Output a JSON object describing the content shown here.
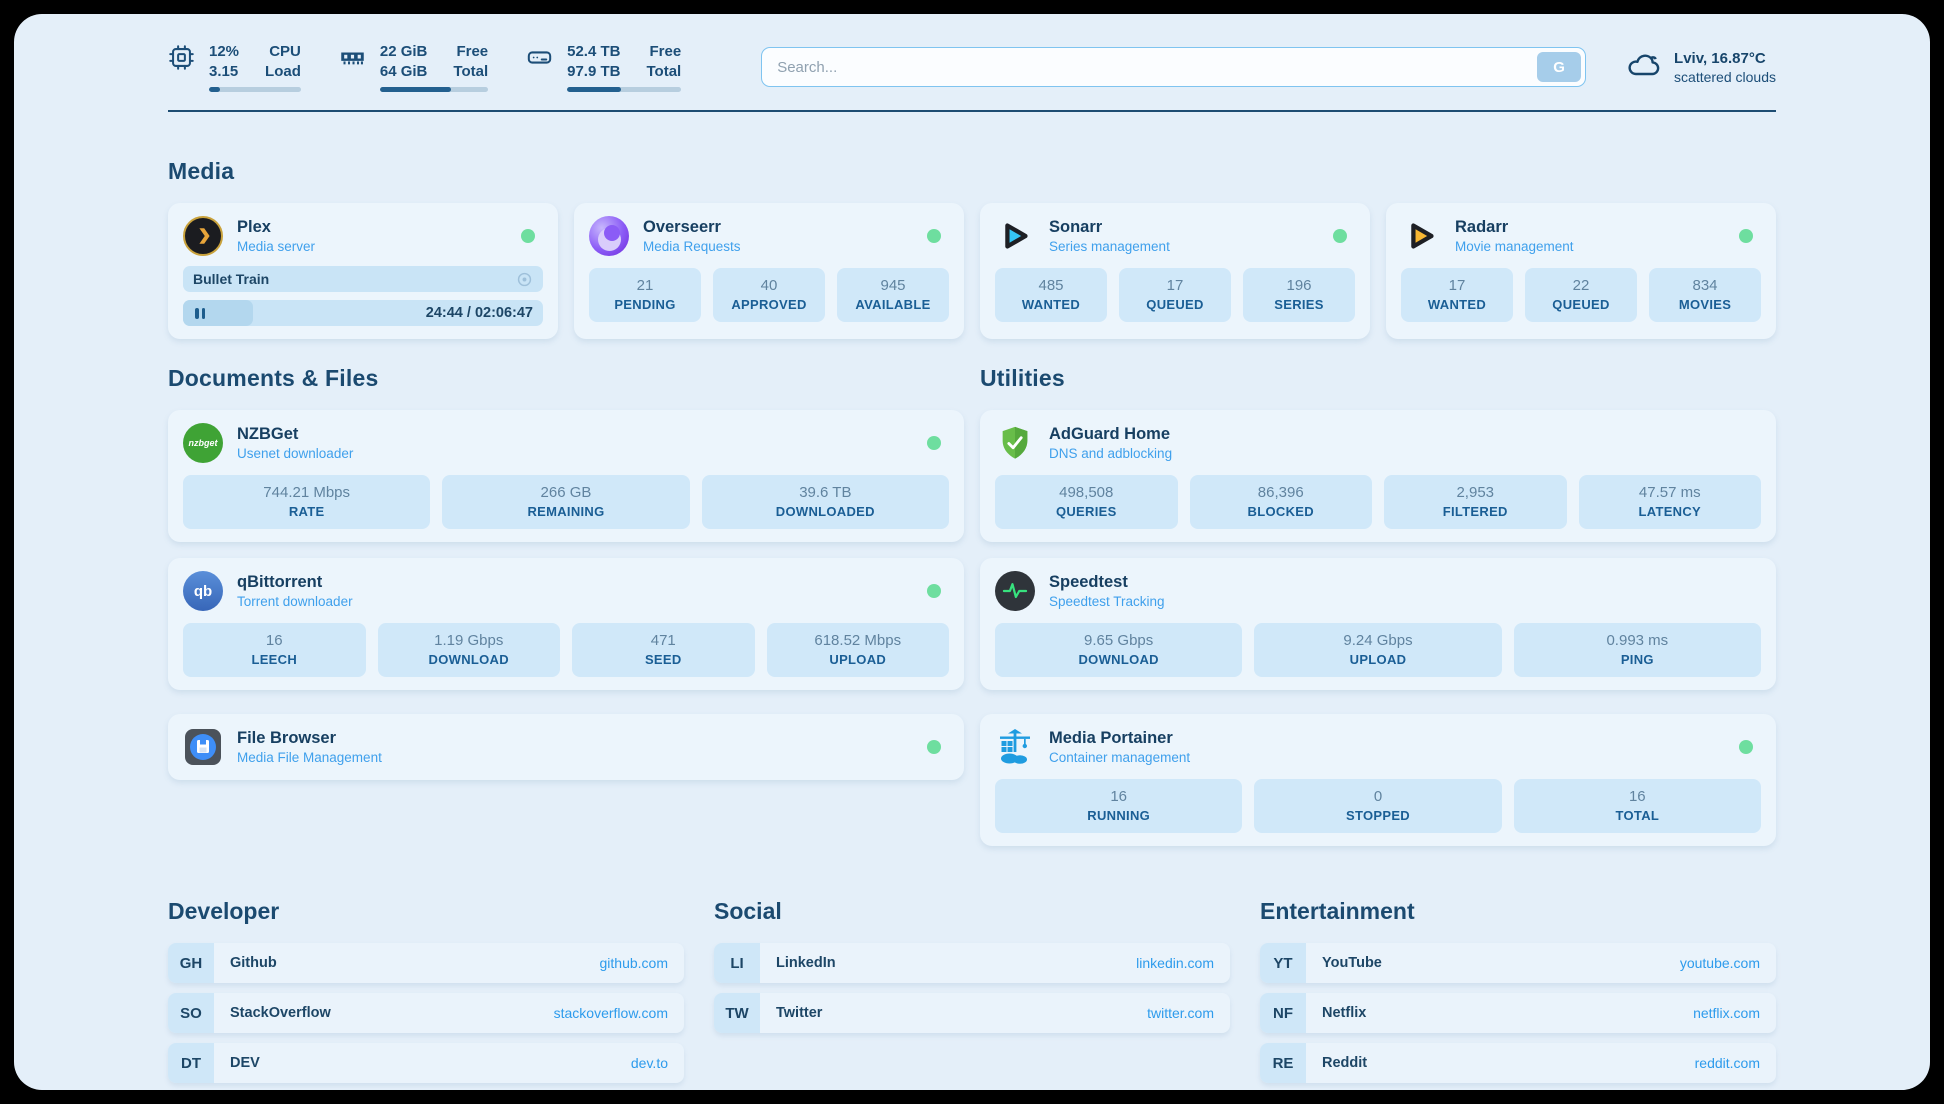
{
  "topbar": {
    "system": [
      {
        "icon": "cpu-icon",
        "line1": "12%",
        "line2": "3.15",
        "label1": "CPU",
        "label2": "Load",
        "progress": 12
      },
      {
        "icon": "ram-icon",
        "line1": "22 GiB",
        "line2": "64 GiB",
        "label1": "Free",
        "label2": "Total",
        "progress": 66
      },
      {
        "icon": "disk-icon",
        "line1": "52.4 TB",
        "line2": "97.9 TB",
        "label1": "Free",
        "label2": "Total",
        "progress": 47
      }
    ],
    "search": {
      "placeholder": "Search...",
      "button_label": "G"
    },
    "weather": {
      "location": "Lviv, 16.87°C",
      "condition": "scattered clouds"
    }
  },
  "sections": {
    "media": {
      "title": "Media",
      "cards": [
        {
          "name": "Plex",
          "subtitle": "Media server",
          "status": "online",
          "stream": {
            "title": "Bullet Train",
            "time": "24:44 / 02:06:47",
            "progress": 19.5
          }
        },
        {
          "name": "Overseerr",
          "subtitle": "Media Requests",
          "status": "online",
          "stats": [
            {
              "value": "21",
              "label": "PENDING"
            },
            {
              "value": "40",
              "label": "APPROVED"
            },
            {
              "value": "945",
              "label": "AVAILABLE"
            }
          ]
        },
        {
          "name": "Sonarr",
          "subtitle": "Series management",
          "status": "online",
          "stats": [
            {
              "value": "485",
              "label": "WANTED"
            },
            {
              "value": "17",
              "label": "QUEUED"
            },
            {
              "value": "196",
              "label": "SERIES"
            }
          ]
        },
        {
          "name": "Radarr",
          "subtitle": "Movie management",
          "status": "online",
          "stats": [
            {
              "value": "17",
              "label": "WANTED"
            },
            {
              "value": "22",
              "label": "QUEUED"
            },
            {
              "value": "834",
              "label": "MOVIES"
            }
          ]
        }
      ]
    },
    "documents": {
      "title": "Documents & Files",
      "cards": [
        {
          "name": "NZBGet",
          "subtitle": "Usenet downloader",
          "status": "online",
          "stats": [
            {
              "value": "744.21 Mbps",
              "label": "RATE"
            },
            {
              "value": "266 GB",
              "label": "REMAINING"
            },
            {
              "value": "39.6 TB",
              "label": "DOWNLOADED"
            }
          ]
        },
        {
          "name": "qBittorrent",
          "subtitle": "Torrent downloader",
          "status": "online",
          "stats": [
            {
              "value": "16",
              "label": "LEECH"
            },
            {
              "value": "1.19 Gbps",
              "label": "DOWNLOAD"
            },
            {
              "value": "471",
              "label": "SEED"
            },
            {
              "value": "618.52 Mbps",
              "label": "UPLOAD"
            }
          ]
        },
        {
          "name": "File Browser",
          "subtitle": "Media File Management",
          "status": "online"
        }
      ]
    },
    "utilities": {
      "title": "Utilities",
      "cards": [
        {
          "name": "AdGuard Home",
          "subtitle": "DNS and adblocking",
          "stats": [
            {
              "value": "498,508",
              "label": "QUERIES"
            },
            {
              "value": "86,396",
              "label": "BLOCKED"
            },
            {
              "value": "2,953",
              "label": "FILTERED"
            },
            {
              "value": "47.57 ms",
              "label": "LATENCY"
            }
          ]
        },
        {
          "name": "Speedtest",
          "subtitle": "Speedtest Tracking",
          "stats": [
            {
              "value": "9.65 Gbps",
              "label": "DOWNLOAD"
            },
            {
              "value": "9.24 Gbps",
              "label": "UPLOAD"
            },
            {
              "value": "0.993 ms",
              "label": "PING"
            }
          ]
        },
        {
          "name": "Media Portainer",
          "subtitle": "Container management",
          "status": "online",
          "stats": [
            {
              "value": "16",
              "label": "RUNNING"
            },
            {
              "value": "0",
              "label": "STOPPED"
            },
            {
              "value": "16",
              "label": "TOTAL"
            }
          ]
        }
      ]
    }
  },
  "links": [
    {
      "title": "Developer",
      "items": [
        {
          "abbr": "GH",
          "name": "Github",
          "url": "github.com"
        },
        {
          "abbr": "SO",
          "name": "StackOverflow",
          "url": "stackoverflow.com"
        },
        {
          "abbr": "DT",
          "name": "DEV",
          "url": "dev.to"
        }
      ]
    },
    {
      "title": "Social",
      "items": [
        {
          "abbr": "LI",
          "name": "LinkedIn",
          "url": "linkedin.com"
        },
        {
          "abbr": "TW",
          "name": "Twitter",
          "url": "twitter.com"
        }
      ]
    },
    {
      "title": "Entertainment",
      "items": [
        {
          "abbr": "YT",
          "name": "YouTube",
          "url": "youtube.com"
        },
        {
          "abbr": "NF",
          "name": "Netflix",
          "url": "netflix.com"
        },
        {
          "abbr": "RE",
          "name": "Reddit",
          "url": "reddit.com"
        }
      ]
    }
  ],
  "colors": {
    "page_bg": "#e4eff9",
    "accent_navy": "#1c4e78",
    "subtitle_blue": "#3fa0ec",
    "link_blue": "#2d9bec",
    "status_online_green": "#6ede9f",
    "stat_value": "#60839f",
    "stat_label": "#1a5e95"
  }
}
